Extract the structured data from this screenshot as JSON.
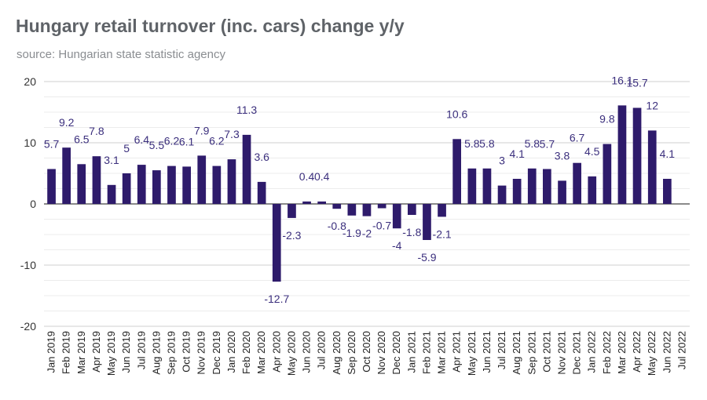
{
  "chart_data": {
    "type": "bar",
    "title": "Hungary retail turnover (inc. cars) change y/y",
    "subtitle": "source: Hungarian state statistic agency",
    "xlabel": "",
    "ylabel": "",
    "ylim": [
      -20,
      20
    ],
    "yticks": [
      "20",
      "10",
      "0",
      "-10",
      "-20"
    ],
    "grid": true,
    "bar_color": "#2e1b6b",
    "categories": [
      "Jan 2019",
      "Feb 2019",
      "Mar 2019",
      "Apr 2019",
      "May 2019",
      "Jun 2019",
      "Jul 2019",
      "Aug 2019",
      "Sep 2019",
      "Oct 2019",
      "Nov 2019",
      "Dec 2019",
      "Jan 2020",
      "Feb 2020",
      "Mar 2020",
      "Apr 2020",
      "May 2020",
      "Jun 2020",
      "Jul 2020",
      "Aug 2020",
      "Sep 2020",
      "Oct 2020",
      "Nov 2020",
      "Dec 2020",
      "Jan 2021",
      "Feb 2021",
      "Mar 2021",
      "Apr 2021",
      "May 2021",
      "Jun 2021",
      "Jul 2021",
      "Aug 2021",
      "Sep 2021",
      "Oct 2021",
      "Nov 2021",
      "Dec 2021",
      "Jan 2022",
      "Feb 2022",
      "Mar 2022",
      "Apr 2022",
      "May 2022",
      "Jun 2022",
      "Jul 2022"
    ],
    "values": [
      5.7,
      9.2,
      6.5,
      7.8,
      3.1,
      5,
      6.4,
      5.5,
      6.2,
      6.1,
      7.9,
      6.2,
      7.3,
      11.3,
      3.6,
      -12.7,
      -2.3,
      0.4,
      0.4,
      -0.8,
      -1.9,
      -2,
      -0.7,
      -4,
      -1.8,
      -5.9,
      -2.1,
      10.6,
      5.8,
      5.8,
      3,
      4.1,
      5.8,
      5.7,
      3.8,
      6.7,
      4.5,
      9.8,
      16.1,
      15.7,
      12,
      4.1,
      null
    ],
    "labels": [
      "5.7",
      "9.2",
      "6.5",
      "7.8",
      "3.1",
      "5",
      "6.4",
      "5.5",
      "6.2",
      "6.1",
      "7.9",
      "6.2",
      "7.3",
      "11.3",
      "3.6",
      "-12.7",
      "-2.3",
      "0.4",
      "0.4",
      "-0.8",
      "-1.9",
      "-2",
      "-0.7",
      "-4",
      "-1.8",
      "-5.9",
      "-2.1",
      "10.6",
      "5.8",
      "5.8",
      "3",
      "4.1",
      "5.8",
      "5.7",
      "3.8",
      "6.7",
      "4.5",
      "9.8",
      "16.1",
      "15.7",
      "12",
      "4.1",
      ""
    ]
  }
}
